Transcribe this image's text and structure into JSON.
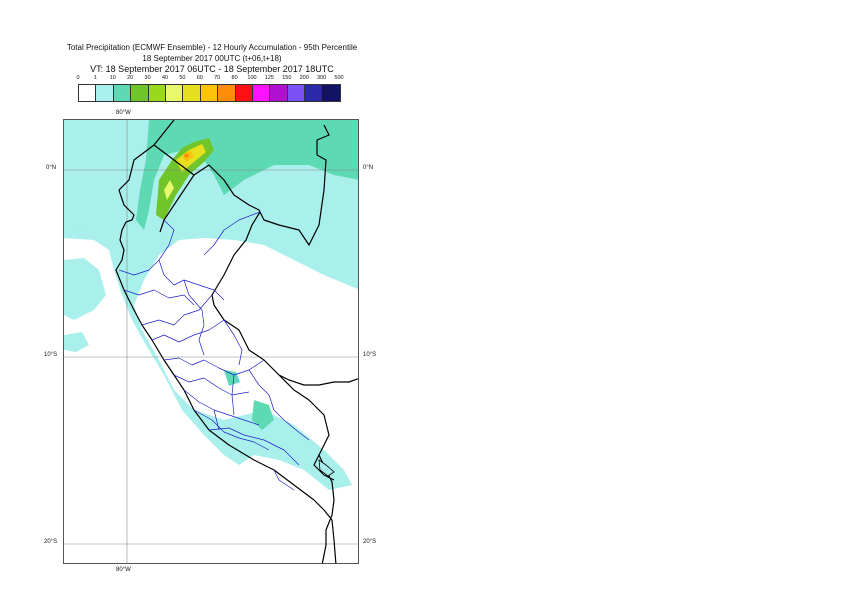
{
  "title": {
    "line1": "Total Precipitation (ECMWF Ensemble) - 12 Hourly Accumulation - 95th Percentile",
    "line2": "18 September 2017 00UTC (t+06,t+18)",
    "line3": "VT: 18 September 2017 06UTC - 18 September 2017 18UTC"
  },
  "legend": {
    "ticks": [
      "0",
      "1",
      "10",
      "20",
      "30",
      "40",
      "50",
      "60",
      "70",
      "80",
      "100",
      "125",
      "150",
      "200",
      "300",
      "500"
    ],
    "colors": [
      "#ffffff",
      "#a7f0ee",
      "#5fd9b4",
      "#6fc52a",
      "#9ad81a",
      "#e7f86a",
      "#e6e01e",
      "#ffc30a",
      "#ff8c0a",
      "#ff1010",
      "#ff10ff",
      "#b010d0",
      "#7a52f5",
      "#2a2aaa",
      "#121266"
    ]
  },
  "axes": {
    "lat_labels": [
      "0°N",
      "10°S",
      "20°S"
    ],
    "lon_label_top": "80°W",
    "lon_label_bottom": "80°W"
  },
  "colors": {
    "light_precip": "#a9efeb",
    "medium_precip": "#5dd9b4",
    "country_border": "#000000",
    "region_border": "#2020c8",
    "gridline": "#888888"
  }
}
